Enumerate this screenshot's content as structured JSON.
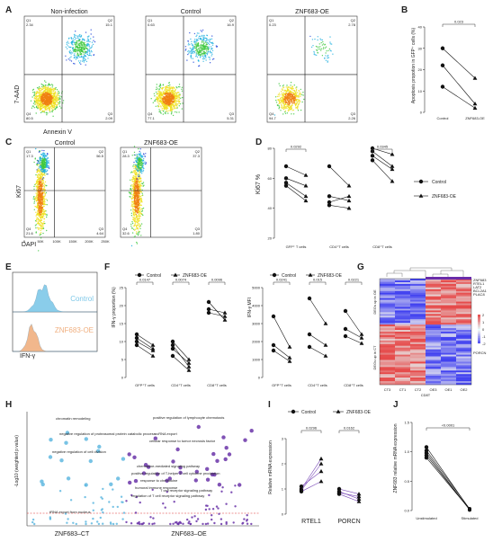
{
  "panel_letters": [
    "A",
    "B",
    "C",
    "D",
    "E",
    "F",
    "G",
    "H",
    "I",
    "J"
  ],
  "panelA": {
    "xlabel": "Annexin V",
    "ylabel": "7-AAD",
    "plots": [
      {
        "title": "Non-infection",
        "q1": "Q1\n2.34",
        "q2": "Q2\n15.1",
        "q3": "Q3\n2.09",
        "q4": "Q4\n80.5"
      },
      {
        "title": "Control",
        "q1": "Q1\n0.63",
        "q2": "Q2\n16.9",
        "q3": "Q3\n5.31",
        "q4": "Q4\n77.1"
      },
      {
        "title": "ZNF683-OE",
        "q1": "Q1\n0.23",
        "q2": "Q2\n2.78",
        "q3": "Q3\n2.26",
        "q4": "Q4\n94.7"
      }
    ]
  },
  "panelB": {
    "chart_data": {
      "type": "line",
      "title": "",
      "ylabel": "Apoptosis propotion in GFP⁺ cells (%)",
      "categories": [
        "Control",
        "ZNF683-OE"
      ],
      "ylim": [
        0,
        40
      ],
      "yticks": [
        "0",
        "10",
        "20",
        "30",
        "40"
      ],
      "pairs": [
        [
          30,
          16
        ],
        [
          22,
          4
        ],
        [
          12,
          2
        ]
      ],
      "pvalue": "0.023"
    }
  },
  "panelC": {
    "xlabel": "DAPI",
    "ylabel": "Ki67",
    "plots": [
      {
        "title": "Control",
        "q1": "Q1\n17.3",
        "q2": "Q2\n56.5",
        "q3": "Q3\n4.64",
        "q4": "Q4\n21.6"
      },
      {
        "title": "ZNF683-OE",
        "q1": "Q1\n28.3",
        "q2": "Q2\n37.3",
        "q3": "Q3\n1.80",
        "q4": "Q4\n32.6"
      }
    ],
    "xticks": [
      "0",
      "50K",
      "100K",
      "150K",
      "200K",
      "250K"
    ]
  },
  "panelD": {
    "chart_data": {
      "type": "line",
      "ylabel": "Ki67 %",
      "ylim": [
        20,
        80
      ],
      "yticks": [
        "20",
        "40",
        "60",
        "80"
      ],
      "groups": [
        "GFP⁺ T cells",
        "CD4⁺T cells",
        "CD8⁺T cells"
      ],
      "series": [
        {
          "name": "Control",
          "pairs_by_group": [
            [
              [
                68,
                62
              ],
              [
                60,
                55
              ],
              [
                57,
                48
              ],
              [
                55,
                45
              ]
            ],
            [
              [
                68,
                55
              ],
              [
                48,
                45
              ],
              [
                44,
                48
              ],
              [
                42,
                40
              ]
            ],
            [
              [
                80,
                76
              ],
              [
                78,
                68
              ],
              [
                75,
                66
              ],
              [
                72,
                58
              ]
            ]
          ]
        }
      ],
      "pvalues": [
        "0.0292",
        "",
        "0.0345"
      ],
      "legend": [
        "Control",
        "ZNF683-OE"
      ]
    }
  },
  "panelE": {
    "xlabel": "IFN-γ",
    "labels": [
      "Control",
      "ZNF683-OE"
    ],
    "colors": [
      "#7ec8e8",
      "#f0b080"
    ]
  },
  "panelF": {
    "legend": [
      "Control",
      "ZNF683-OE"
    ],
    "left": {
      "ylabel": "IFN-γ proportion (%)",
      "yticks": [
        "0",
        "5",
        "10",
        "15",
        "20",
        "25"
      ],
      "ylim": [
        0,
        25
      ],
      "groups": [
        "GFP⁺T cells",
        "CD4⁺T cells",
        "CD8⁺T cells"
      ],
      "pvalues": [
        "0.0147",
        "0.0074",
        "0.0096"
      ],
      "pairs": [
        [
          [
            12,
            9
          ],
          [
            11,
            8
          ],
          [
            10,
            7.5
          ],
          [
            9,
            6
          ]
        ],
        [
          [
            10,
            5
          ],
          [
            9,
            3
          ],
          [
            8,
            4
          ],
          [
            6,
            2
          ]
        ],
        [
          [
            21,
            16
          ],
          [
            19,
            18
          ],
          [
            18,
            17
          ]
        ]
      ]
    },
    "right": {
      "ylabel": "IFN-γ MFI",
      "yticks": [
        "0",
        "1000",
        "2000",
        "3000",
        "4000",
        "5000"
      ],
      "ylim": [
        0,
        5000
      ],
      "groups": [
        "GFP⁺T cells",
        "CD4⁺T cells",
        "CD8⁺T cells"
      ],
      "pvalues": [
        "0.0241",
        "0.015",
        "0.0221"
      ],
      "pairs": [
        [
          [
            3400,
            1700
          ],
          [
            1800,
            1100
          ],
          [
            1500,
            900
          ]
        ],
        [
          [
            4400,
            3000
          ],
          [
            2400,
            1800
          ],
          [
            1700,
            1200
          ]
        ],
        [
          [
            3700,
            2400
          ],
          [
            2700,
            2200
          ],
          [
            2300,
            1900
          ]
        ]
      ]
    }
  },
  "panelG": {
    "row_labels": [
      "DEGs up in OE",
      "DEGs up in CT"
    ],
    "col_labels": [
      "CT3",
      "CT1",
      "CT2",
      "OE3",
      "OE1",
      "OE2"
    ],
    "bottom_label": "CD8T",
    "genes": [
      "ZNF683",
      "RTEL1",
      "LAT2",
      "BCL2A1",
      "PLAC8"
    ],
    "gene_porcn": "PORCN",
    "legend_ticks": [
      "2",
      "1",
      "0",
      "-1",
      "-2"
    ]
  },
  "panelH": {
    "ylabel": "-Log10 (weighted p value)",
    "categories": [
      "ZNF683–CT",
      "ZNF683–OE"
    ],
    "terms": [
      "chromatin remodeling",
      "negative regulation of proteasomal protein catabolic process",
      "negative regulation of cell division",
      "tRNA export from nucleus",
      "positive regulation of lymphocyte chemotaxis",
      "ncRNA export",
      "cellular response to tumor necrosis factor",
      "chemokine-mediated signaling pathway",
      "positive regulation of T-helper 2 cell cytokine production",
      "response to chemokine",
      "humoral immune response",
      "regulation of T cell receptor signaling pathway",
      "T cell receptor signaling pathway"
    ]
  },
  "panelI": {
    "legend": [
      "Control",
      "ZNF683-OE"
    ],
    "ylabel": "Relative mRNA expression",
    "yticks": [
      "0",
      "1",
      "2",
      "3"
    ],
    "ylim": [
      0,
      3
    ],
    "genes": [
      "RTEL1",
      "PORCN"
    ],
    "pvalues": [
      "0.0296",
      "0.0162"
    ],
    "pairs": [
      [
        [
          1.0,
          2.2
        ],
        [
          0.95,
          2.0
        ],
        [
          1.1,
          1.7
        ],
        [
          0.9,
          1.3
        ]
      ],
      [
        [
          1.0,
          0.8
        ],
        [
          0.9,
          0.6
        ],
        [
          0.85,
          0.7
        ],
        [
          0.8,
          0.5
        ]
      ]
    ]
  },
  "panelJ": {
    "ylabel": "ZNF683 relative mRNA expression",
    "yticks": [
      "0.0",
      "0.5",
      "1.0",
      "1.5"
    ],
    "ylim": [
      0,
      1.5
    ],
    "categories": [
      "Unstimulated",
      "Stimulated"
    ],
    "pvalue": "<0.0001",
    "pairs": [
      [
        1.08,
        0.02
      ],
      [
        1.02,
        0.03
      ],
      [
        0.98,
        0.01
      ],
      [
        0.94,
        0.02
      ],
      [
        0.9,
        0.02
      ]
    ]
  },
  "colors": {
    "purple": "#5a2c8c",
    "blue": "#3b4bb8",
    "red": "#d02828",
    "cyan": "#2aa6c8"
  }
}
